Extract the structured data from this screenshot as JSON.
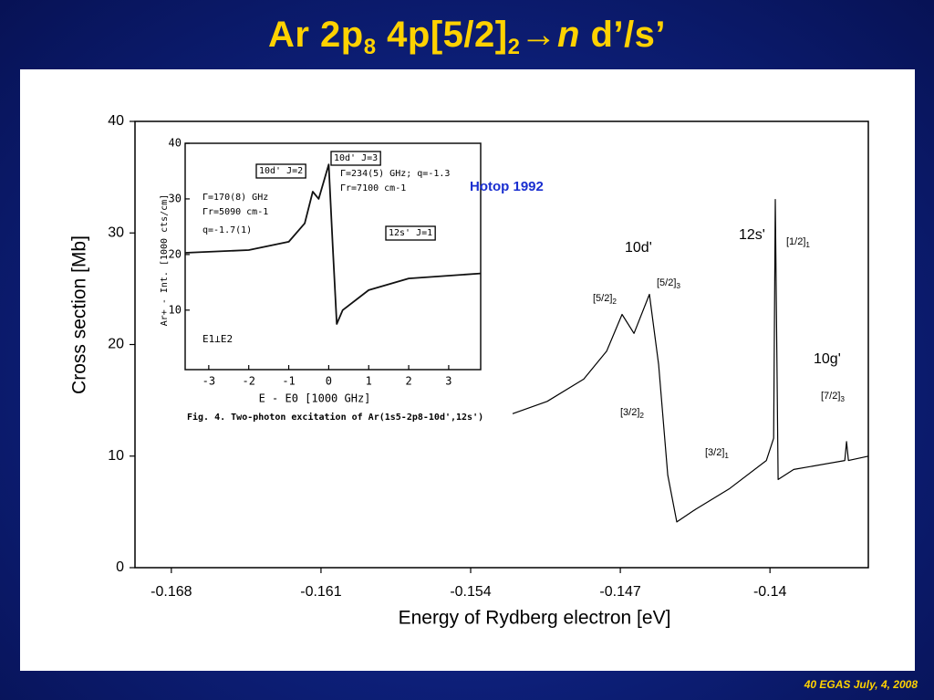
{
  "slide": {
    "title": {
      "parts": [
        "Ar 2p",
        "8",
        " 4p[5/2]",
        "2",
        "→",
        "n",
        " d’/s’"
      ]
    },
    "footer": "40 EGAS July, 4, 2008"
  },
  "chart_data": [
    {
      "type": "line",
      "x_label": "Energy of Rydberg electron [eV]",
      "y_label": "Cross section [Mb]",
      "x": [
        -0.15204,
        -0.15042,
        -0.14871,
        -0.14764,
        -0.14692,
        -0.14636,
        -0.14564,
        -0.14521,
        -0.14478,
        -0.14436,
        -0.14359,
        -0.14188,
        -0.14017,
        -0.13983,
        -0.13975,
        -0.13962,
        -0.13889,
        -0.1365,
        -0.13642,
        -0.13633,
        -0.13539
      ],
      "series": [
        {
          "color": "#000000",
          "values": [
            13.8,
            14.9,
            16.9,
            19.4,
            22.7,
            21.0,
            24.5,
            18.2,
            8.3,
            4.1,
            5.1,
            7.1,
            9.6,
            11.6,
            33.0,
            7.9,
            8.8,
            9.6,
            11.3,
            9.6,
            10.0
          ]
        }
      ],
      "xlim": [
        -0.1697,
        -0.1354
      ],
      "ylim": [
        0,
        40
      ],
      "xticks": [
        -0.168,
        -0.161,
        -0.154,
        -0.147,
        -0.14
      ],
      "yticks": [
        0,
        10,
        20,
        30,
        40
      ],
      "annotations": [
        {
          "text": "Hotop 1992"
        },
        {
          "text": "10d'"
        },
        {
          "text": "12s'"
        },
        {
          "text": "[1/2]",
          "sub": "1"
        },
        {
          "text": "[5/2]",
          "sub": "3"
        },
        {
          "text": "[5/2]",
          "sub": "2"
        },
        {
          "text": "[3/2]",
          "sub": "2"
        },
        {
          "text": "[3/2]",
          "sub": "1"
        },
        {
          "text": "10g'"
        },
        {
          "text": "[7/2]",
          "sub": "3"
        }
      ]
    },
    {
      "type": "line",
      "x_label": "E - E0 [1000 GHz]",
      "y_label": "Ar+ - Int. [1000 cts/cm]",
      "caption": "Fig. 4. Two-photon excitation of Ar(1s5-2p8-10d',12s')",
      "x": [
        -3.59,
        -2,
        -1,
        -0.6,
        -0.4,
        -0.25,
        0,
        0.1,
        0.2,
        0.35,
        1,
        2,
        3.8
      ],
      "series": [
        {
          "color": "#111111",
          "values": [
            20.3,
            20.8,
            22.3,
            25.6,
            31.3,
            30.0,
            36.2,
            21.5,
            7.5,
            10.0,
            13.6,
            15.7,
            16.6
          ]
        }
      ],
      "xlim": [
        -3.59,
        3.8
      ],
      "ylim": [
        -0.7,
        40
      ],
      "xticks": [
        -3,
        -2,
        -1,
        0,
        1,
        2,
        3
      ],
      "yticks": [
        10,
        20,
        30,
        40
      ],
      "annotations": [
        {
          "text": "10d' J=2",
          "boxed": true
        },
        {
          "text": "Γ=170(8) GHz"
        },
        {
          "text": "Γr=5090 cm-1"
        },
        {
          "text": "q=-1.7(1)"
        },
        {
          "text": "10d' J=3",
          "boxed": true
        },
        {
          "text": "Γ=234(5) GHz; q=-1.3"
        },
        {
          "text": "Γr=7100 cm-1"
        },
        {
          "text": "12s' J=1",
          "boxed": true
        },
        {
          "text": "E1⊥E2"
        }
      ]
    }
  ]
}
